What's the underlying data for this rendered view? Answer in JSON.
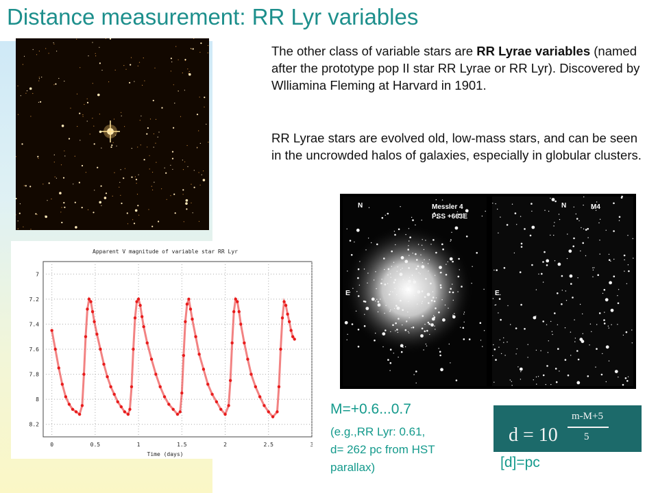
{
  "slide": {
    "title": "Distance measurement: RR Lyr variables",
    "para1": {
      "t1": "The other class of variable stars are ",
      "bold": "RR Lyrae variables",
      "t2": " (named after the prototype pop II star RR Lyrae or RR Lyr). Discovered by Wlliamina Fleming at Harvard in 1901."
    },
    "para2": "RR Lyrae stars are evolved old, low-mass stars, and can be seen in the uncrowded halos of galaxies, especially in globular clusters.",
    "result": {
      "absolute_mag": "M=+0.6...0.7",
      "note_line1": "(e.g.,RR Lyr: 0.61,",
      "note_line2": "d= 262 pc from HST",
      "note_line3": "parallax)",
      "unit": "[d]=pc"
    },
    "formula": {
      "lhs": "d = 10",
      "exp_num": "m-M+5",
      "exp_den": "5"
    },
    "cluster_images": {
      "left_label_n": "N",
      "left_label_name": "Messler 4",
      "left_label_pss": "PSS +663E",
      "left_label_e": "E",
      "right_label_n": "N",
      "right_label_name": "M4",
      "right_label_e": "E"
    }
  },
  "chart_data": {
    "type": "scatter",
    "title": "Apparent V magnitude of variable star RR Lyr",
    "xlabel": "Time (days)",
    "ylabel": "",
    "xlim": [
      -0.1,
      3.0
    ],
    "ylim": [
      8.3,
      6.9
    ],
    "y_inverted": true,
    "xticks": [
      "0",
      "0.5",
      "1",
      "1.5",
      "2",
      "2.5",
      "3"
    ],
    "yticks": [
      "7",
      "7.2",
      "7.4",
      "7.6",
      "7.8",
      "8",
      "8.2"
    ],
    "grid": true,
    "series": [
      {
        "color": "#e81c1c",
        "x": [
          0.0,
          0.04,
          0.08,
          0.12,
          0.16,
          0.2,
          0.24,
          0.28,
          0.32,
          0.35,
          0.37,
          0.39,
          0.41,
          0.43,
          0.45,
          0.47,
          0.49,
          0.52,
          0.56,
          0.6,
          0.64,
          0.68,
          0.72,
          0.76,
          0.8,
          0.84,
          0.88,
          0.9,
          0.92,
          0.94,
          0.96,
          0.98,
          1.0,
          1.02,
          1.04,
          1.06,
          1.1,
          1.15,
          1.2,
          1.25,
          1.3,
          1.35,
          1.4,
          1.45,
          1.48,
          1.5,
          1.52,
          1.54,
          1.56,
          1.58,
          1.6,
          1.62,
          1.66,
          1.7,
          1.75,
          1.8,
          1.85,
          1.9,
          1.95,
          2.0,
          2.04,
          2.06,
          2.08,
          2.1,
          2.12,
          2.14,
          2.16,
          2.18,
          2.22,
          2.26,
          2.3,
          2.35,
          2.4,
          2.45,
          2.5,
          2.55,
          2.6,
          2.62,
          2.64,
          2.66,
          2.68,
          2.7,
          2.72,
          2.74,
          2.76,
          2.78,
          2.8
        ],
        "y": [
          7.45,
          7.6,
          7.75,
          7.88,
          7.98,
          8.04,
          8.08,
          8.1,
          8.12,
          8.05,
          7.8,
          7.5,
          7.28,
          7.2,
          7.22,
          7.3,
          7.38,
          7.48,
          7.6,
          7.72,
          7.82,
          7.9,
          7.96,
          8.02,
          8.06,
          8.1,
          8.12,
          8.08,
          7.9,
          7.6,
          7.35,
          7.22,
          7.2,
          7.25,
          7.34,
          7.42,
          7.55,
          7.68,
          7.8,
          7.9,
          7.98,
          8.04,
          8.08,
          8.12,
          8.1,
          7.95,
          7.65,
          7.38,
          7.24,
          7.2,
          7.28,
          7.36,
          7.5,
          7.64,
          7.76,
          7.88,
          7.96,
          8.02,
          8.08,
          8.12,
          8.05,
          7.85,
          7.55,
          7.3,
          7.2,
          7.22,
          7.3,
          7.4,
          7.55,
          7.68,
          7.8,
          7.9,
          7.98,
          8.05,
          8.1,
          8.14,
          8.1,
          7.9,
          7.6,
          7.35,
          7.22,
          7.25,
          7.32,
          7.38,
          7.45,
          7.5,
          7.52
        ]
      }
    ]
  }
}
